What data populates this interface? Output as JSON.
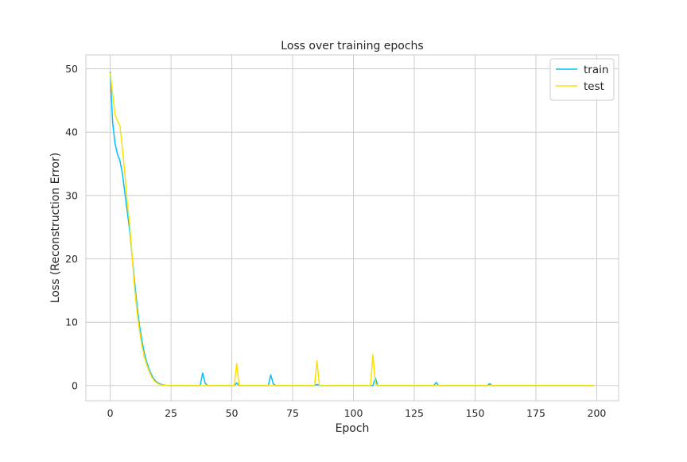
{
  "chart_data": {
    "type": "line",
    "title": "Loss over training epochs",
    "xlabel": "Epoch",
    "ylabel": "Loss (Reconstruction Error)",
    "xlim": [
      -10,
      209
    ],
    "ylim": [
      -2.4,
      52.2
    ],
    "xticks": [
      0,
      25,
      50,
      75,
      100,
      125,
      150,
      175,
      200
    ],
    "yticks": [
      0,
      10,
      20,
      30,
      40,
      50
    ],
    "grid": true,
    "legend_position": "top-right",
    "series": [
      {
        "name": "train",
        "color": "#00bfff",
        "points": [
          [
            0,
            49.5
          ],
          [
            1,
            41.5
          ],
          [
            2,
            38.2
          ],
          [
            3,
            36.5
          ],
          [
            4,
            35.5
          ],
          [
            5,
            33.5
          ],
          [
            6,
            30.5
          ],
          [
            7,
            27.5
          ],
          [
            8,
            24.5
          ],
          [
            9,
            20.5
          ],
          [
            10,
            16.5
          ],
          [
            11,
            12.8
          ],
          [
            12,
            9.6
          ],
          [
            13,
            7.2
          ],
          [
            14,
            5.2
          ],
          [
            15,
            3.7
          ],
          [
            16,
            2.6
          ],
          [
            17,
            1.7
          ],
          [
            18,
            1.0
          ],
          [
            19,
            0.6
          ],
          [
            20,
            0.35
          ],
          [
            21,
            0.18
          ],
          [
            22,
            0.08
          ],
          [
            23,
            0.03
          ],
          [
            24,
            0.0
          ],
          [
            37,
            0.0
          ],
          [
            38,
            2.0
          ],
          [
            39,
            0.4
          ],
          [
            40,
            0.0
          ],
          [
            51,
            0.0
          ],
          [
            52,
            0.4
          ],
          [
            53,
            0.0
          ],
          [
            65,
            0.0
          ],
          [
            66,
            1.7
          ],
          [
            67,
            0.3
          ],
          [
            68,
            0.0
          ],
          [
            84,
            0.0
          ],
          [
            85,
            0.2
          ],
          [
            86,
            0.0
          ],
          [
            108,
            0.0
          ],
          [
            109,
            1.2
          ],
          [
            110,
            0.0
          ],
          [
            133,
            0.0
          ],
          [
            134,
            0.5
          ],
          [
            135,
            0.0
          ],
          [
            155,
            0.0
          ],
          [
            156,
            0.3
          ],
          [
            157,
            0.0
          ],
          [
            199,
            0.0
          ]
        ]
      },
      {
        "name": "test",
        "color": "#ffe000",
        "points": [
          [
            0,
            49.3
          ],
          [
            1,
            46.0
          ],
          [
            2,
            42.8
          ],
          [
            3,
            41.8
          ],
          [
            4,
            41.0
          ],
          [
            5,
            37.5
          ],
          [
            6,
            33.5
          ],
          [
            7,
            29.0
          ],
          [
            8,
            25.5
          ],
          [
            9,
            20.5
          ],
          [
            10,
            15.5
          ],
          [
            11,
            11.8
          ],
          [
            12,
            8.8
          ],
          [
            13,
            6.4
          ],
          [
            14,
            4.6
          ],
          [
            15,
            3.3
          ],
          [
            16,
            2.3
          ],
          [
            17,
            1.4
          ],
          [
            18,
            0.8
          ],
          [
            19,
            0.45
          ],
          [
            20,
            0.22
          ],
          [
            21,
            0.1
          ],
          [
            22,
            0.04
          ],
          [
            23,
            0.0
          ],
          [
            51,
            0.0
          ],
          [
            52,
            3.5
          ],
          [
            53,
            0.0
          ],
          [
            84,
            0.0
          ],
          [
            85,
            3.9
          ],
          [
            86,
            0.0
          ],
          [
            107,
            0.0
          ],
          [
            108,
            4.9
          ],
          [
            109,
            0.3
          ],
          [
            110,
            0.0
          ],
          [
            199,
            0.0
          ]
        ]
      }
    ]
  }
}
